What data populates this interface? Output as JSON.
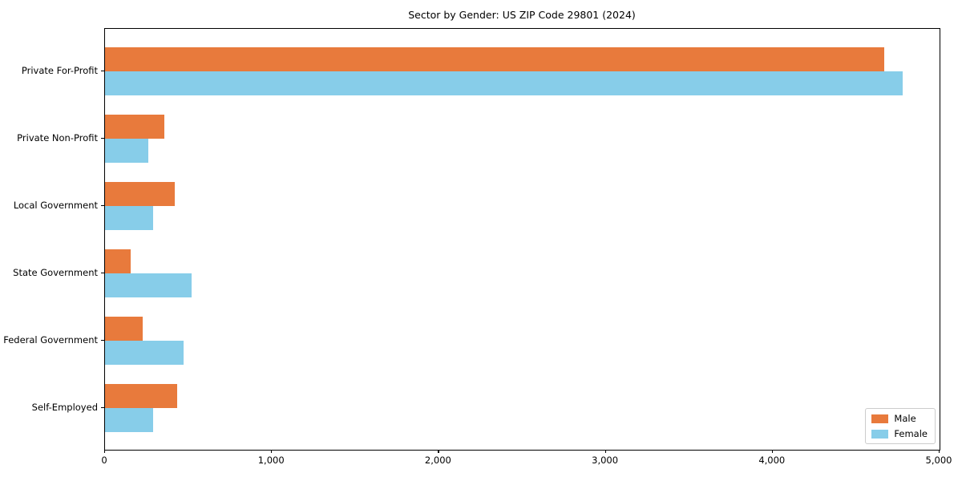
{
  "title": "Sector by Gender: US ZIP Code 29801 (2024)",
  "chart_data": {
    "type": "bar",
    "orientation": "horizontal",
    "title": "Sector by Gender: US ZIP Code 29801 (2024)",
    "categories": [
      "Private For-Profit",
      "Private Non-Profit",
      "Local Government",
      "State Government",
      "Federal Government",
      "Self-Employed"
    ],
    "series": [
      {
        "name": "Male",
        "color": "#e87a3c",
        "values": [
          4670,
          355,
          420,
          155,
          225,
          430
        ]
      },
      {
        "name": "Female",
        "color": "#87cde9",
        "values": [
          4780,
          260,
          290,
          520,
          470,
          290
        ]
      }
    ],
    "xlabel": "",
    "ylabel": "",
    "xlim": [
      0,
      5000
    ],
    "xticks": [
      0,
      1000,
      2000,
      3000,
      4000,
      5000
    ],
    "xtick_labels": [
      "0",
      "1,000",
      "2,000",
      "3,000",
      "4,000",
      "5,000"
    ],
    "grid": false,
    "legend": {
      "position": "lower right",
      "items": [
        "Male",
        "Female"
      ]
    }
  },
  "colors": {
    "male": "#e87a3c",
    "female": "#87cde9",
    "axis": "#000000",
    "text": "#000000",
    "legend_border": "#cccccc",
    "background": "#ffffff"
  }
}
